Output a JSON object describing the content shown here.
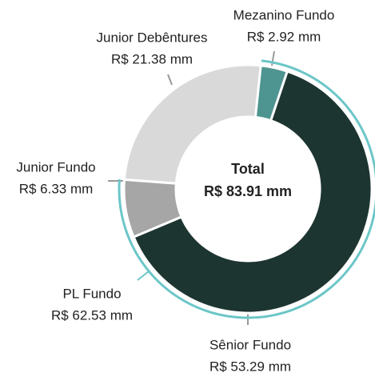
{
  "chart_data": {
    "type": "donut",
    "categories": [
      "Mezanino Fundo",
      "Sênior Fundo",
      "Junior Fundo",
      "Junior Debêntures"
    ],
    "values": [
      2.92,
      53.29,
      6.33,
      21.38
    ],
    "value_labels": [
      "R$ 2.92 mm",
      "R$ 53.29 mm",
      "R$ 6.33 mm",
      "R$ 21.38 mm"
    ],
    "colors": [
      "#4e9490",
      "#1d3530",
      "#a6a6a6",
      "#d9d9d9"
    ],
    "center_title": "Total",
    "total": 83.91,
    "total_label": "R$ 83.91 mm",
    "group": {
      "name": "PL Fundo",
      "value": 62.53,
      "value_label": "R$ 62.53 mm",
      "color": "#6cc6c8"
    }
  }
}
